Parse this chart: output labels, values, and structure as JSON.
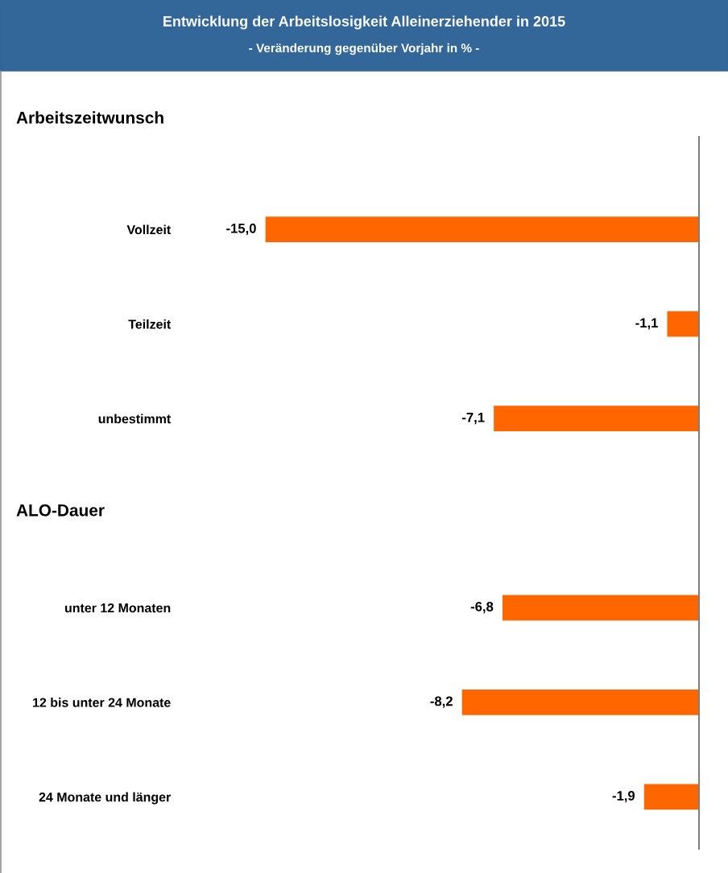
{
  "chart_data": {
    "type": "bar",
    "orientation": "horizontal",
    "title": "Entwicklung der Arbeitslosigkeit Alleinerziehender in 2015",
    "subtitle": "- Veränderung gegenüber Vorjahr in % -",
    "categories": [
      "Vollzeit",
      "Teilzeit",
      "unbestimmt",
      null,
      "unter 12 Monaten",
      "12 bis unter 24 Monate",
      "24 Monate und länger"
    ],
    "values": [
      -15.0,
      -1.1,
      -7.1,
      null,
      -6.8,
      -8.2,
      -1.9
    ],
    "value_labels": [
      "-15,0",
      "-1,1",
      "-7,1",
      null,
      "-6,8",
      "-8,2",
      "-1,9"
    ],
    "color": "#ff6600",
    "annotations": [
      "Arbeitszeitwunsch",
      "ALO-Dauer"
    ],
    "grid": false,
    "legend": false
  }
}
